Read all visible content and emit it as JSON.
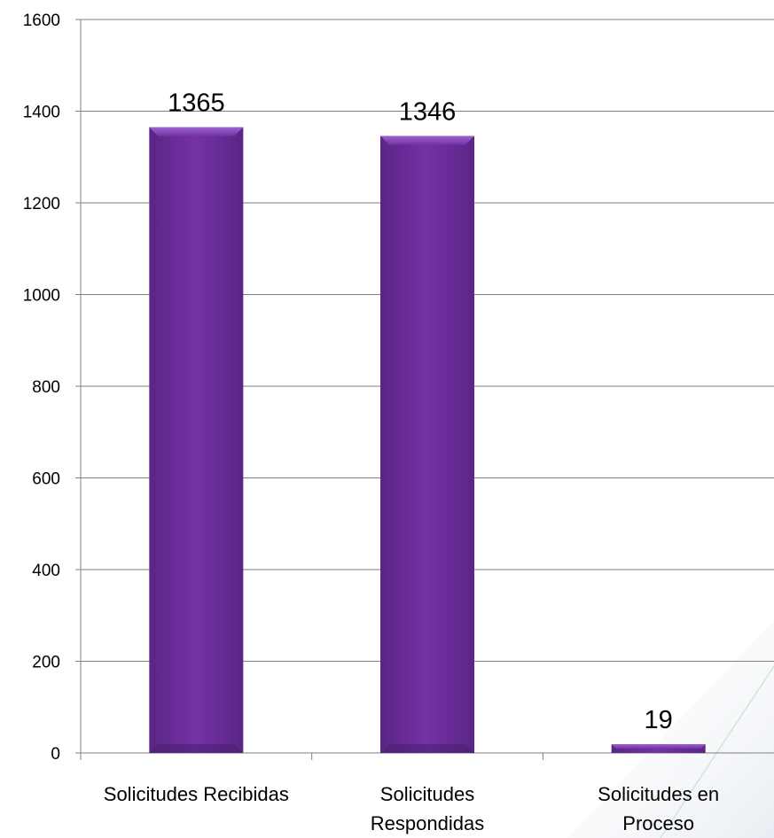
{
  "chart_data": {
    "type": "bar",
    "title": "",
    "xlabel": "",
    "ylabel": "",
    "categories": [
      [
        "Solicitudes Recibidas"
      ],
      [
        "Solicitudes",
        "Respondidas"
      ],
      [
        "Solicitudes en",
        "Proceso"
      ]
    ],
    "values": [
      1365,
      1346,
      19
    ],
    "data_labels": [
      "1365",
      "1346",
      "19"
    ],
    "ylim": [
      0,
      1600
    ],
    "yticks": [
      0,
      200,
      400,
      600,
      800,
      1000,
      1200,
      1400,
      1600
    ],
    "grid": true,
    "legend": "none",
    "colors": {
      "bar_fill": "#6b2f9b",
      "bar_light": "#8a4fc0",
      "bar_dark": "#4a1d70",
      "grid": "#7f7f7f",
      "axis": "#7f7f7f"
    }
  }
}
